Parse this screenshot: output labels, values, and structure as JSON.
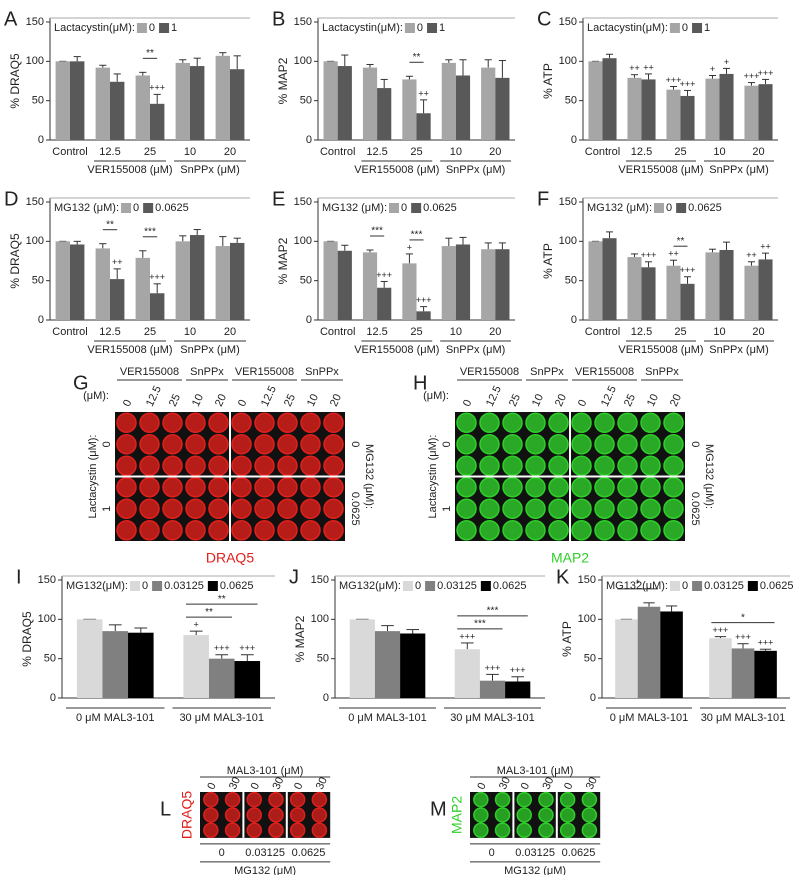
{
  "chart_data": [
    {
      "type": "bar",
      "panel": "A",
      "ylabel": "% DRAQ5",
      "legend_title": "Lactacystin(μM):",
      "groups": [
        {
          "label": null,
          "categories": [
            "Control"
          ]
        },
        {
          "label": "VER155008 (μM)",
          "categories": [
            "12.5",
            "25"
          ]
        },
        {
          "label": "SnPPx (μM)",
          "categories": [
            "10",
            "20"
          ]
        }
      ],
      "series": [
        {
          "name": "0",
          "color": "#a6a6a6",
          "values": [
            100,
            92,
            82,
            98,
            107
          ],
          "errors": [
            0,
            3,
            4,
            4,
            4
          ],
          "marks": [
            null,
            null,
            null,
            null,
            null
          ]
        },
        {
          "name": "1",
          "color": "#595959",
          "values": [
            100,
            74,
            46,
            94,
            90
          ],
          "errors": [
            6,
            10,
            12,
            10,
            17
          ],
          "marks": [
            null,
            null,
            "+++",
            null,
            null
          ]
        }
      ],
      "brackets": [
        {
          "label": "**",
          "category": 2,
          "series": [
            0,
            1
          ]
        }
      ],
      "ylim": [
        0,
        150
      ],
      "yticks": [
        0,
        50,
        100,
        150
      ]
    },
    {
      "type": "bar",
      "panel": "B",
      "ylabel": "% MAP2",
      "legend_title": "Lactacystin(μM):",
      "groups": [
        {
          "label": null,
          "categories": [
            "Control"
          ]
        },
        {
          "label": "VER155008 (μM)",
          "categories": [
            "12.5",
            "25"
          ]
        },
        {
          "label": "SnPPx (μM)",
          "categories": [
            "10",
            "20"
          ]
        }
      ],
      "series": [
        {
          "name": "0",
          "color": "#a6a6a6",
          "values": [
            100,
            92,
            77,
            98,
            92
          ],
          "errors": [
            0,
            4,
            4,
            4,
            10
          ],
          "marks": [
            null,
            null,
            null,
            null,
            null
          ]
        },
        {
          "name": "1",
          "color": "#595959",
          "values": [
            94,
            66,
            34,
            82,
            79
          ],
          "errors": [
            14,
            11,
            17,
            20,
            22
          ],
          "marks": [
            null,
            null,
            "++",
            null,
            null
          ]
        }
      ],
      "brackets": [
        {
          "label": "**",
          "category": 2,
          "series": [
            0,
            1
          ]
        }
      ],
      "ylim": [
        0,
        150
      ],
      "yticks": [
        0,
        50,
        100,
        150
      ]
    },
    {
      "type": "bar",
      "panel": "C",
      "ylabel": "% ATP",
      "legend_title": "Lactacystin(μM):",
      "groups": [
        {
          "label": null,
          "categories": [
            "Control"
          ]
        },
        {
          "label": "VER155008 (μM)",
          "categories": [
            "12.5",
            "25"
          ]
        },
        {
          "label": "SnPPx (μM)",
          "categories": [
            "10",
            "20"
          ]
        }
      ],
      "series": [
        {
          "name": "0",
          "color": "#a6a6a6",
          "values": [
            100,
            79,
            64,
            78,
            69
          ],
          "errors": [
            0,
            4,
            4,
            4,
            4
          ],
          "marks": [
            null,
            "++",
            "+++",
            "+",
            "+++"
          ]
        },
        {
          "name": "1",
          "color": "#595959",
          "values": [
            104,
            77,
            56,
            84,
            71
          ],
          "errors": [
            5,
            7,
            7,
            7,
            6
          ],
          "marks": [
            null,
            "++",
            "+++",
            "+",
            "+++"
          ]
        }
      ],
      "brackets": [],
      "ylim": [
        0,
        150
      ],
      "yticks": [
        0,
        50,
        100,
        150
      ]
    },
    {
      "type": "bar",
      "panel": "D",
      "ylabel": "% DRAQ5",
      "legend_title": "MG132 (μM):",
      "groups": [
        {
          "label": null,
          "categories": [
            "Control"
          ]
        },
        {
          "label": "VER155008 (μM)",
          "categories": [
            "12.5",
            "25"
          ]
        },
        {
          "label": "SnPPx (μM)",
          "categories": [
            "10",
            "20"
          ]
        }
      ],
      "series": [
        {
          "name": "0",
          "color": "#a6a6a6",
          "values": [
            100,
            91,
            79,
            100,
            94
          ],
          "errors": [
            0,
            6,
            9,
            7,
            12
          ],
          "marks": [
            null,
            null,
            null,
            null,
            null
          ]
        },
        {
          "name": "0.0625",
          "color": "#595959",
          "values": [
            96,
            52,
            34,
            108,
            98
          ],
          "errors": [
            4,
            13,
            12,
            7,
            6
          ],
          "marks": [
            null,
            "++",
            "+++",
            null,
            null
          ]
        }
      ],
      "brackets": [
        {
          "label": "**",
          "category": 1,
          "series": [
            0,
            1
          ]
        },
        {
          "label": "***",
          "category": 2,
          "series": [
            0,
            1
          ]
        }
      ],
      "ylim": [
        0,
        150
      ],
      "yticks": [
        0,
        50,
        100,
        150
      ]
    },
    {
      "type": "bar",
      "panel": "E",
      "ylabel": "% MAP2",
      "legend_title": "MG132 (μM):",
      "groups": [
        {
          "label": null,
          "categories": [
            "Control"
          ]
        },
        {
          "label": "VER155008 (μM)",
          "categories": [
            "12.5",
            "25"
          ]
        },
        {
          "label": "SnPPx (μM)",
          "categories": [
            "10",
            "20"
          ]
        }
      ],
      "series": [
        {
          "name": "0",
          "color": "#a6a6a6",
          "values": [
            100,
            86,
            72,
            94,
            90
          ],
          "errors": [
            0,
            3,
            12,
            10,
            8
          ],
          "marks": [
            null,
            null,
            "+",
            null,
            null
          ]
        },
        {
          "name": "0.0625",
          "color": "#595959",
          "values": [
            88,
            41,
            11,
            96,
            90
          ],
          "errors": [
            7,
            8,
            6,
            9,
            8
          ],
          "marks": [
            null,
            "+++",
            "+++",
            null,
            null
          ]
        }
      ],
      "brackets": [
        {
          "label": "***",
          "category": 1,
          "series": [
            0,
            1
          ]
        },
        {
          "label": "***",
          "category": 2,
          "series": [
            0,
            1
          ]
        }
      ],
      "ylim": [
        0,
        150
      ],
      "yticks": [
        0,
        50,
        100,
        150
      ]
    },
    {
      "type": "bar",
      "panel": "F",
      "ylabel": "% ATP",
      "legend_title": "MG132 (μM):",
      "groups": [
        {
          "label": null,
          "categories": [
            "Control"
          ]
        },
        {
          "label": "VER155008 (μM)",
          "categories": [
            "12.5",
            "25"
          ]
        },
        {
          "label": "SnPPx (μM)",
          "categories": [
            "10",
            "20"
          ]
        }
      ],
      "series": [
        {
          "name": "0",
          "color": "#a6a6a6",
          "values": [
            100,
            80,
            69,
            86,
            69
          ],
          "errors": [
            0,
            4,
            7,
            4,
            5
          ],
          "marks": [
            null,
            null,
            "++",
            null,
            "++"
          ]
        },
        {
          "name": "0.0625",
          "color": "#595959",
          "values": [
            104,
            67,
            46,
            89,
            77
          ],
          "errors": [
            8,
            7,
            9,
            10,
            8
          ],
          "marks": [
            null,
            "+++",
            "+++",
            null,
            "++"
          ]
        }
      ],
      "brackets": [
        {
          "label": "**",
          "category": 2,
          "series": [
            0,
            1
          ]
        }
      ],
      "ylim": [
        0,
        150
      ],
      "yticks": [
        0,
        50,
        100,
        150
      ]
    },
    {
      "type": "bar",
      "panel": "I",
      "ylabel": "% DRAQ5",
      "legend_title": "MG132(μM):",
      "categories": [
        "0 μM MAL3-101",
        "30 μM MAL3-101"
      ],
      "series": [
        {
          "name": "0",
          "color": "#d9d9d9",
          "values": [
            100,
            80
          ],
          "errors": [
            0,
            5
          ],
          "marks": [
            null,
            "+"
          ]
        },
        {
          "name": "0.03125",
          "color": "#808080",
          "values": [
            85,
            50
          ],
          "errors": [
            8,
            5
          ],
          "marks": [
            null,
            "+++"
          ]
        },
        {
          "name": "0.0625",
          "color": "#000000",
          "values": [
            83,
            47
          ],
          "errors": [
            6,
            8
          ],
          "marks": [
            null,
            "+++"
          ]
        }
      ],
      "brackets": [
        {
          "label": "**",
          "category": 1,
          "series": [
            0,
            1
          ]
        },
        {
          "label": "**",
          "category": 1,
          "series": [
            0,
            2
          ]
        }
      ],
      "ylim": [
        0,
        150
      ],
      "yticks": [
        0,
        50,
        100,
        150
      ]
    },
    {
      "type": "bar",
      "panel": "J",
      "ylabel": "% MAP2",
      "legend_title": "MG132(μM):",
      "categories": [
        "0 μM MAL3-101",
        "30 μM MAL3-101"
      ],
      "series": [
        {
          "name": "0",
          "color": "#d9d9d9",
          "values": [
            100,
            62
          ],
          "errors": [
            0,
            8
          ],
          "marks": [
            null,
            "+++"
          ]
        },
        {
          "name": "0.03125",
          "color": "#808080",
          "values": [
            85,
            22
          ],
          "errors": [
            7,
            8
          ],
          "marks": [
            null,
            "+++"
          ]
        },
        {
          "name": "0.0625",
          "color": "#000000",
          "values": [
            82,
            21
          ],
          "errors": [
            5,
            6
          ],
          "marks": [
            null,
            "+++"
          ]
        }
      ],
      "brackets": [
        {
          "label": "***",
          "category": 1,
          "series": [
            0,
            1
          ]
        },
        {
          "label": "***",
          "category": 1,
          "series": [
            0,
            2
          ]
        }
      ],
      "ylim": [
        0,
        150
      ],
      "yticks": [
        0,
        50,
        100,
        150
      ]
    },
    {
      "type": "bar",
      "panel": "K",
      "ylabel": "% ATP",
      "legend_title": "MG132(μM):",
      "categories": [
        "0 μM MAL3-101",
        "30 μM MAL3-101"
      ],
      "series": [
        {
          "name": "0",
          "color": "#d9d9d9",
          "values": [
            100,
            76
          ],
          "errors": [
            0,
            2
          ],
          "marks": [
            null,
            "+++"
          ]
        },
        {
          "name": "0.03125",
          "color": "#808080",
          "values": [
            116,
            63
          ],
          "errors": [
            5,
            6
          ],
          "marks": [
            null,
            "+++"
          ]
        },
        {
          "name": "0.0625",
          "color": "#000000",
          "values": [
            110,
            60
          ],
          "errors": [
            7,
            2
          ],
          "marks": [
            null,
            "+++"
          ]
        }
      ],
      "brackets": [
        {
          "label": "*",
          "category": 0,
          "series": [
            0,
            1
          ]
        },
        {
          "label": "*",
          "category": 1,
          "series": [
            0,
            2
          ]
        }
      ],
      "ylim": [
        0,
        150
      ],
      "yticks": [
        0,
        50,
        100,
        150
      ]
    }
  ],
  "plates": [
    {
      "panel": "G",
      "top_groups": [
        {
          "label": "VER155008",
          "columns": [
            "0",
            "12.5",
            "25"
          ]
        },
        {
          "label": "SnPPx",
          "columns": [
            "10",
            "20"
          ]
        },
        {
          "label": "VER155008",
          "columns": [
            "0",
            "12.5",
            "25"
          ]
        },
        {
          "label": "SnPPx",
          "columns": [
            "10",
            "20"
          ]
        }
      ],
      "unit": "(μM):",
      "left_title": "Lactacystin (μM):",
      "left_rows": [
        "0",
        "1"
      ],
      "right_title": "MG132 (μM):",
      "right_rows": [
        "0",
        "0.0625"
      ],
      "caption": "DRAQ5",
      "color": "#e0201c"
    },
    {
      "panel": "H",
      "top_groups": [
        {
          "label": "VER155008",
          "columns": [
            "0",
            "12.5",
            "25"
          ]
        },
        {
          "label": "SnPPx",
          "columns": [
            "10",
            "20"
          ]
        },
        {
          "label": "VER155008",
          "columns": [
            "0",
            "12.5",
            "25"
          ]
        },
        {
          "label": "SnPPx",
          "columns": [
            "10",
            "20"
          ]
        }
      ],
      "unit": "(μM):",
      "left_title": "Lactacystin (μM):",
      "left_rows": [
        "0",
        "1"
      ],
      "right_title": "MG132 (μM):",
      "right_rows": [
        "0",
        "0.0625"
      ],
      "caption": "MAP2",
      "color": "#2fcf2a"
    },
    {
      "panel": "L",
      "top_title": "MAL3-101 (μM)",
      "columns": [
        "0",
        "30",
        "0",
        "30",
        "0",
        "30"
      ],
      "bottom_labels": [
        "0",
        "0.03125",
        "0.0625"
      ],
      "bottom_title": "MG132 (μM)",
      "side_label": "DRAQ5",
      "color": "#e0201c"
    },
    {
      "panel": "M",
      "top_title": "MAL3-101 (μM)",
      "columns": [
        "0",
        "30",
        "0",
        "30",
        "0",
        "30"
      ],
      "bottom_labels": [
        "0",
        "0.03125",
        "0.0625"
      ],
      "bottom_title": "MG132 (μM)",
      "side_label": "MAP2",
      "color": "#2fcf2a"
    }
  ]
}
